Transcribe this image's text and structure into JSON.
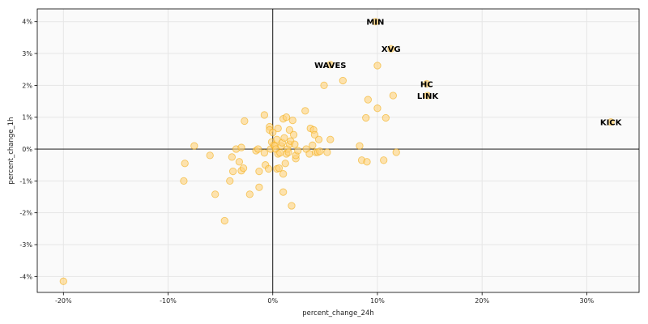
{
  "chart_data": {
    "type": "scatter",
    "xlabel": "percent_change_24h",
    "ylabel": "percent_change_1h",
    "xlim": [
      -22.5,
      35
    ],
    "ylim": [
      -4.5,
      4.4
    ],
    "x_ticks": [
      -20,
      -10,
      0,
      10,
      20,
      30
    ],
    "x_tick_labels": [
      "-20%",
      "-10%",
      "0%",
      "10%",
      "20%",
      "30%"
    ],
    "y_ticks": [
      -4,
      -3,
      -2,
      -1,
      0,
      1,
      2,
      3,
      4
    ],
    "y_tick_labels": [
      "-4%",
      "-3%",
      "-2%",
      "-1%",
      "0%",
      "1%",
      "2%",
      "3%",
      "4%"
    ],
    "grid": true,
    "reference_lines": {
      "x": 0,
      "y": 0
    },
    "colors": {
      "marker_fill": "#ffd27a",
      "marker_stroke": "#f0a500",
      "labeled_marker": "#f5c04a",
      "plot_bg": "#fafafa",
      "grid": "#e6e6e6"
    },
    "points": [
      [
        -20,
        -4.15
      ],
      [
        -8.4,
        -0.45
      ],
      [
        -8.5,
        -1.0
      ],
      [
        -7.5,
        0.1
      ],
      [
        -6,
        -0.2
      ],
      [
        -5.5,
        -1.42
      ],
      [
        -4.6,
        -2.25
      ],
      [
        -4.1,
        -1.0
      ],
      [
        -3.9,
        -0.25
      ],
      [
        -3.8,
        -0.7
      ],
      [
        -3.5,
        0.0
      ],
      [
        -3.2,
        -0.4
      ],
      [
        -3.0,
        0.05
      ],
      [
        -3.0,
        -0.68
      ],
      [
        -2.8,
        -0.6
      ],
      [
        -2.7,
        0.88
      ],
      [
        -2.2,
        -1.42
      ],
      [
        -1.6,
        -0.05
      ],
      [
        -1.4,
        0.0
      ],
      [
        -1.3,
        -1.2
      ],
      [
        -1.3,
        -0.7
      ],
      [
        -0.8,
        -0.12
      ],
      [
        -0.8,
        1.07
      ],
      [
        -0.7,
        -0.5
      ],
      [
        -0.4,
        -0.62
      ],
      [
        -0.3,
        0.7
      ],
      [
        -0.3,
        0.6
      ],
      [
        -0.2,
        0.0
      ],
      [
        -0.1,
        0.22
      ],
      [
        0.0,
        0.52
      ],
      [
        0.1,
        0.12
      ],
      [
        0.2,
        0.1
      ],
      [
        0.3,
        0.0
      ],
      [
        0.4,
        0.3
      ],
      [
        0.4,
        -0.62
      ],
      [
        0.5,
        0.65
      ],
      [
        0.5,
        -0.15
      ],
      [
        0.6,
        -0.6
      ],
      [
        0.7,
        -0.12
      ],
      [
        0.8,
        0.1
      ],
      [
        0.9,
        0.2
      ],
      [
        1.0,
        0.95
      ],
      [
        1.0,
        -0.78
      ],
      [
        1.0,
        -1.35
      ],
      [
        1.1,
        0.35
      ],
      [
        1.2,
        -0.45
      ],
      [
        1.3,
        1.0
      ],
      [
        1.3,
        -0.15
      ],
      [
        1.4,
        0.0
      ],
      [
        1.5,
        -0.1
      ],
      [
        1.6,
        0.15
      ],
      [
        1.6,
        0.6
      ],
      [
        1.7,
        0.25
      ],
      [
        1.8,
        -1.78
      ],
      [
        1.9,
        0.9
      ],
      [
        2.0,
        0.45
      ],
      [
        2.1,
        0.15
      ],
      [
        2.2,
        -0.3
      ],
      [
        2.2,
        -0.2
      ],
      [
        2.4,
        -0.05
      ],
      [
        3.1,
        1.2
      ],
      [
        3.2,
        0.0
      ],
      [
        3.5,
        -0.15
      ],
      [
        3.6,
        0.65
      ],
      [
        3.8,
        0.12
      ],
      [
        3.9,
        0.6
      ],
      [
        4.0,
        0.45
      ],
      [
        4.1,
        -0.1
      ],
      [
        4.3,
        -0.1
      ],
      [
        4.4,
        0.3
      ],
      [
        4.5,
        -0.07
      ],
      [
        4.9,
        2.0
      ],
      [
        5.2,
        -0.1
      ],
      [
        5.5,
        0.3
      ],
      [
        6.7,
        2.15
      ],
      [
        8.3,
        0.1
      ],
      [
        8.5,
        -0.35
      ],
      [
        8.9,
        0.98
      ],
      [
        9.0,
        -0.4
      ],
      [
        9.1,
        1.55
      ],
      [
        10.0,
        2.62
      ],
      [
        10.0,
        1.28
      ],
      [
        10.6,
        -0.35
      ],
      [
        10.8,
        0.98
      ],
      [
        11.5,
        1.68
      ],
      [
        11.8,
        -0.1
      ]
    ],
    "labeled_points": [
      {
        "label": "MIN",
        "x": 9.8,
        "y": 4.0
      },
      {
        "label": "XVG",
        "x": 11.3,
        "y": 3.15
      },
      {
        "label": "WAVES",
        "x": 5.5,
        "y": 2.65
      },
      {
        "label": "HC",
        "x": 14.7,
        "y": 2.05
      },
      {
        "label": "LINK",
        "x": 14.8,
        "y": 1.68
      },
      {
        "label": "KICK",
        "x": 32.3,
        "y": 0.85
      }
    ]
  }
}
